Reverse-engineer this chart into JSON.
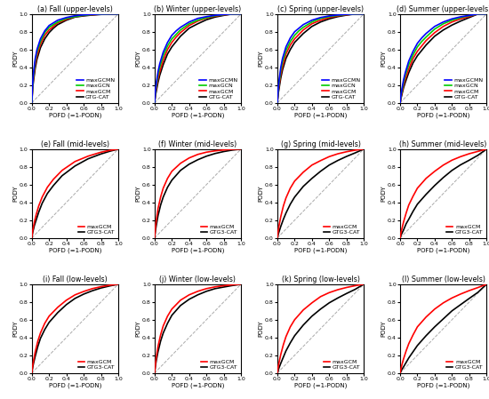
{
  "titles": [
    [
      "(a) Fall (upper-levels)",
      "(b) Winter (upper-levels)",
      "(c) Spring (upper-levels)",
      "(d) Summer (upper-levels)"
    ],
    [
      "(e) Fall (mid-levels)",
      "(f) Winter (mid-levels)",
      "(g) Spring (mid-levels)",
      "(h) Summer (mid-levels)"
    ],
    [
      "(i) Fall (low-levels)",
      "(j) Winter (low-levels)",
      "(k) Spring (low-levels)",
      "(l) Summer (low-levels)"
    ]
  ],
  "xlabel": "POFD (=1-PODN)",
  "ylabel": "PODY",
  "upper_curves": {
    "fall": {
      "maxGCMN": {
        "x": [
          0,
          0.01,
          0.02,
          0.04,
          0.06,
          0.1,
          0.15,
          0.2,
          0.25,
          0.3,
          0.4,
          0.5,
          0.6,
          0.7,
          0.8,
          0.9,
          1.0
        ],
        "y": [
          0,
          0.22,
          0.34,
          0.5,
          0.6,
          0.72,
          0.81,
          0.87,
          0.9,
          0.93,
          0.96,
          0.98,
          0.99,
          0.995,
          0.999,
          1.0,
          1.0
        ]
      },
      "maxGCN": {
        "x": [
          0,
          0.01,
          0.02,
          0.04,
          0.06,
          0.1,
          0.15,
          0.2,
          0.25,
          0.3,
          0.4,
          0.5,
          0.6,
          0.7,
          0.8,
          0.9,
          1.0
        ],
        "y": [
          0,
          0.2,
          0.31,
          0.47,
          0.57,
          0.69,
          0.79,
          0.85,
          0.88,
          0.91,
          0.95,
          0.97,
          0.985,
          0.993,
          0.998,
          1.0,
          1.0
        ]
      },
      "maxGCM": {
        "x": [
          0,
          0.01,
          0.02,
          0.04,
          0.06,
          0.1,
          0.15,
          0.2,
          0.25,
          0.3,
          0.4,
          0.5,
          0.6,
          0.7,
          0.8,
          0.9,
          1.0
        ],
        "y": [
          0,
          0.18,
          0.28,
          0.43,
          0.53,
          0.66,
          0.76,
          0.82,
          0.86,
          0.9,
          0.94,
          0.97,
          0.983,
          0.991,
          0.997,
          1.0,
          1.0
        ]
      },
      "GTGCAT": {
        "x": [
          0,
          0.01,
          0.02,
          0.04,
          0.06,
          0.1,
          0.15,
          0.2,
          0.25,
          0.3,
          0.4,
          0.5,
          0.6,
          0.7,
          0.8,
          0.9,
          1.0
        ],
        "y": [
          0,
          0.16,
          0.25,
          0.39,
          0.49,
          0.62,
          0.72,
          0.79,
          0.84,
          0.88,
          0.93,
          0.965,
          0.978,
          0.988,
          0.995,
          1.0,
          1.0
        ]
      }
    },
    "winter": {
      "maxGCMN": {
        "x": [
          0,
          0.01,
          0.02,
          0.04,
          0.06,
          0.1,
          0.15,
          0.2,
          0.25,
          0.3,
          0.4,
          0.5,
          0.6,
          0.7,
          0.8,
          0.9,
          1.0
        ],
        "y": [
          0,
          0.14,
          0.22,
          0.35,
          0.44,
          0.57,
          0.68,
          0.76,
          0.81,
          0.85,
          0.91,
          0.95,
          0.97,
          0.985,
          0.994,
          1.0,
          1.0
        ]
      },
      "maxGCN": {
        "x": [
          0,
          0.01,
          0.02,
          0.04,
          0.06,
          0.1,
          0.15,
          0.2,
          0.25,
          0.3,
          0.4,
          0.5,
          0.6,
          0.7,
          0.8,
          0.9,
          1.0
        ],
        "y": [
          0,
          0.12,
          0.19,
          0.31,
          0.4,
          0.53,
          0.64,
          0.72,
          0.77,
          0.82,
          0.89,
          0.93,
          0.96,
          0.98,
          0.992,
          1.0,
          1.0
        ]
      },
      "maxGCM": {
        "x": [
          0,
          0.01,
          0.02,
          0.04,
          0.06,
          0.1,
          0.15,
          0.2,
          0.25,
          0.3,
          0.4,
          0.5,
          0.6,
          0.7,
          0.8,
          0.9,
          1.0
        ],
        "y": [
          0,
          0.1,
          0.16,
          0.27,
          0.35,
          0.48,
          0.6,
          0.68,
          0.74,
          0.79,
          0.87,
          0.92,
          0.955,
          0.975,
          0.989,
          1.0,
          1.0
        ]
      },
      "GTGCAT": {
        "x": [
          0,
          0.01,
          0.02,
          0.04,
          0.06,
          0.1,
          0.15,
          0.2,
          0.25,
          0.3,
          0.4,
          0.5,
          0.6,
          0.7,
          0.8,
          0.9,
          1.0
        ],
        "y": [
          0,
          0.08,
          0.13,
          0.23,
          0.31,
          0.43,
          0.55,
          0.63,
          0.69,
          0.75,
          0.84,
          0.89,
          0.935,
          0.965,
          0.984,
          1.0,
          1.0
        ]
      }
    },
    "spring": {
      "maxGCMN": {
        "x": [
          0,
          0.01,
          0.02,
          0.04,
          0.06,
          0.1,
          0.15,
          0.2,
          0.25,
          0.3,
          0.4,
          0.5,
          0.6,
          0.7,
          0.8,
          0.9,
          1.0
        ],
        "y": [
          0,
          0.16,
          0.25,
          0.4,
          0.5,
          0.63,
          0.73,
          0.8,
          0.84,
          0.88,
          0.93,
          0.96,
          0.978,
          0.989,
          0.996,
          1.0,
          1.0
        ]
      },
      "maxGCN": {
        "x": [
          0,
          0.01,
          0.02,
          0.04,
          0.06,
          0.1,
          0.15,
          0.2,
          0.25,
          0.3,
          0.4,
          0.5,
          0.6,
          0.7,
          0.8,
          0.9,
          1.0
        ],
        "y": [
          0,
          0.14,
          0.22,
          0.36,
          0.46,
          0.59,
          0.69,
          0.76,
          0.81,
          0.85,
          0.91,
          0.95,
          0.97,
          0.984,
          0.994,
          1.0,
          1.0
        ]
      },
      "maxGCM": {
        "x": [
          0,
          0.01,
          0.02,
          0.04,
          0.06,
          0.1,
          0.15,
          0.2,
          0.25,
          0.3,
          0.4,
          0.5,
          0.6,
          0.7,
          0.8,
          0.9,
          1.0
        ],
        "y": [
          0,
          0.12,
          0.19,
          0.32,
          0.41,
          0.55,
          0.65,
          0.72,
          0.77,
          0.82,
          0.89,
          0.93,
          0.96,
          0.978,
          0.991,
          1.0,
          1.0
        ]
      },
      "GTGCAT": {
        "x": [
          0,
          0.01,
          0.02,
          0.04,
          0.06,
          0.1,
          0.15,
          0.2,
          0.25,
          0.3,
          0.4,
          0.5,
          0.6,
          0.7,
          0.8,
          0.9,
          1.0
        ],
        "y": [
          0,
          0.1,
          0.16,
          0.28,
          0.37,
          0.5,
          0.6,
          0.68,
          0.73,
          0.78,
          0.86,
          0.91,
          0.945,
          0.97,
          0.987,
          1.0,
          1.0
        ]
      }
    },
    "summer": {
      "maxGCMN": {
        "x": [
          0,
          0.01,
          0.02,
          0.04,
          0.06,
          0.1,
          0.15,
          0.2,
          0.25,
          0.3,
          0.4,
          0.5,
          0.6,
          0.7,
          0.8,
          0.9,
          1.0
        ],
        "y": [
          0,
          0.09,
          0.15,
          0.26,
          0.34,
          0.47,
          0.58,
          0.67,
          0.73,
          0.78,
          0.86,
          0.91,
          0.945,
          0.968,
          0.984,
          1.0,
          1.0
        ]
      },
      "maxGCN": {
        "x": [
          0,
          0.01,
          0.02,
          0.04,
          0.06,
          0.1,
          0.15,
          0.2,
          0.25,
          0.3,
          0.4,
          0.5,
          0.6,
          0.7,
          0.8,
          0.9,
          1.0
        ],
        "y": [
          0,
          0.08,
          0.13,
          0.23,
          0.31,
          0.43,
          0.54,
          0.63,
          0.69,
          0.74,
          0.83,
          0.89,
          0.93,
          0.96,
          0.98,
          1.0,
          1.0
        ]
      },
      "maxGCM": {
        "x": [
          0,
          0.01,
          0.02,
          0.04,
          0.06,
          0.1,
          0.15,
          0.2,
          0.25,
          0.3,
          0.4,
          0.5,
          0.6,
          0.7,
          0.8,
          0.9,
          1.0
        ],
        "y": [
          0,
          0.06,
          0.11,
          0.2,
          0.27,
          0.38,
          0.5,
          0.58,
          0.64,
          0.7,
          0.79,
          0.86,
          0.91,
          0.945,
          0.972,
          1.0,
          1.0
        ]
      },
      "GTGCAT": {
        "x": [
          0,
          0.01,
          0.02,
          0.04,
          0.06,
          0.1,
          0.15,
          0.2,
          0.25,
          0.3,
          0.4,
          0.5,
          0.6,
          0.7,
          0.8,
          0.9,
          1.0
        ],
        "y": [
          0,
          0.05,
          0.09,
          0.17,
          0.23,
          0.34,
          0.45,
          0.53,
          0.59,
          0.65,
          0.75,
          0.82,
          0.875,
          0.92,
          0.96,
          1.0,
          1.0
        ]
      }
    }
  },
  "mid_curves": {
    "fall": {
      "maxGCM": {
        "x": [
          0,
          0.01,
          0.03,
          0.05,
          0.08,
          0.12,
          0.18,
          0.25,
          0.35,
          0.5,
          0.65,
          0.8,
          0.9,
          1.0
        ],
        "y": [
          0,
          0.08,
          0.18,
          0.26,
          0.36,
          0.46,
          0.57,
          0.66,
          0.76,
          0.86,
          0.92,
          0.965,
          0.985,
          1.0
        ]
      },
      "GTGCAT": {
        "x": [
          0,
          0.01,
          0.03,
          0.05,
          0.08,
          0.12,
          0.18,
          0.25,
          0.35,
          0.5,
          0.65,
          0.8,
          0.9,
          1.0
        ],
        "y": [
          0,
          0.06,
          0.14,
          0.2,
          0.29,
          0.39,
          0.5,
          0.59,
          0.7,
          0.81,
          0.89,
          0.945,
          0.975,
          1.0
        ]
      }
    },
    "winter": {
      "maxGCM": {
        "x": [
          0,
          0.01,
          0.02,
          0.04,
          0.07,
          0.1,
          0.15,
          0.2,
          0.3,
          0.4,
          0.5,
          0.6,
          0.7,
          0.8,
          0.9,
          1.0
        ],
        "y": [
          0,
          0.12,
          0.2,
          0.33,
          0.46,
          0.56,
          0.67,
          0.75,
          0.84,
          0.9,
          0.94,
          0.965,
          0.98,
          0.99,
          0.997,
          1.0
        ]
      },
      "GTGCAT": {
        "x": [
          0,
          0.01,
          0.02,
          0.04,
          0.07,
          0.1,
          0.15,
          0.2,
          0.3,
          0.4,
          0.5,
          0.6,
          0.7,
          0.8,
          0.9,
          1.0
        ],
        "y": [
          0,
          0.08,
          0.14,
          0.25,
          0.37,
          0.46,
          0.57,
          0.65,
          0.76,
          0.83,
          0.88,
          0.92,
          0.95,
          0.972,
          0.989,
          1.0
        ]
      }
    },
    "spring": {
      "maxGCM": {
        "x": [
          0,
          0.01,
          0.02,
          0.04,
          0.07,
          0.1,
          0.15,
          0.2,
          0.3,
          0.4,
          0.5,
          0.6,
          0.7,
          0.8,
          0.9,
          1.0
        ],
        "y": [
          0,
          0.08,
          0.14,
          0.24,
          0.36,
          0.45,
          0.56,
          0.64,
          0.74,
          0.82,
          0.87,
          0.915,
          0.947,
          0.97,
          0.988,
          1.0
        ]
      },
      "GTGCAT": {
        "x": [
          0,
          0.01,
          0.02,
          0.04,
          0.07,
          0.1,
          0.15,
          0.2,
          0.3,
          0.4,
          0.5,
          0.6,
          0.7,
          0.8,
          0.9,
          1.0
        ],
        "y": [
          0,
          0.04,
          0.07,
          0.13,
          0.21,
          0.28,
          0.38,
          0.46,
          0.58,
          0.67,
          0.75,
          0.82,
          0.872,
          0.917,
          0.957,
          1.0
        ]
      }
    },
    "summer": {
      "maxGCM": {
        "x": [
          0,
          0.01,
          0.02,
          0.04,
          0.07,
          0.1,
          0.15,
          0.2,
          0.3,
          0.4,
          0.5,
          0.6,
          0.7,
          0.8,
          0.9,
          1.0
        ],
        "y": [
          0,
          0.06,
          0.1,
          0.18,
          0.28,
          0.37,
          0.47,
          0.56,
          0.67,
          0.75,
          0.82,
          0.875,
          0.915,
          0.948,
          0.974,
          1.0
        ]
      },
      "GTGCAT": {
        "x": [
          0,
          0.01,
          0.02,
          0.04,
          0.07,
          0.1,
          0.15,
          0.2,
          0.3,
          0.4,
          0.5,
          0.6,
          0.7,
          0.8,
          0.9,
          1.0
        ],
        "y": [
          0,
          0.03,
          0.05,
          0.09,
          0.16,
          0.21,
          0.3,
          0.38,
          0.49,
          0.59,
          0.68,
          0.76,
          0.823,
          0.875,
          0.93,
          1.0
        ]
      }
    }
  },
  "low_curves": {
    "fall": {
      "maxGCM": {
        "x": [
          0,
          0.01,
          0.02,
          0.04,
          0.07,
          0.1,
          0.15,
          0.2,
          0.3,
          0.4,
          0.5,
          0.6,
          0.7,
          0.8,
          0.9,
          1.0
        ],
        "y": [
          0,
          0.08,
          0.14,
          0.24,
          0.36,
          0.45,
          0.56,
          0.64,
          0.74,
          0.82,
          0.88,
          0.918,
          0.95,
          0.972,
          0.988,
          1.0
        ]
      },
      "GTGCAT": {
        "x": [
          0,
          0.01,
          0.02,
          0.04,
          0.07,
          0.1,
          0.15,
          0.2,
          0.3,
          0.4,
          0.5,
          0.6,
          0.7,
          0.8,
          0.9,
          1.0
        ],
        "y": [
          0,
          0.06,
          0.11,
          0.19,
          0.3,
          0.39,
          0.49,
          0.57,
          0.68,
          0.77,
          0.84,
          0.888,
          0.926,
          0.957,
          0.98,
          1.0
        ]
      }
    },
    "winter": {
      "maxGCM": {
        "x": [
          0,
          0.01,
          0.02,
          0.04,
          0.07,
          0.1,
          0.15,
          0.2,
          0.3,
          0.4,
          0.5,
          0.6,
          0.7,
          0.8,
          0.9,
          1.0
        ],
        "y": [
          0,
          0.1,
          0.18,
          0.3,
          0.43,
          0.53,
          0.64,
          0.72,
          0.82,
          0.88,
          0.92,
          0.95,
          0.97,
          0.983,
          0.993,
          1.0
        ]
      },
      "GTGCAT": {
        "x": [
          0,
          0.01,
          0.02,
          0.04,
          0.07,
          0.1,
          0.15,
          0.2,
          0.3,
          0.4,
          0.5,
          0.6,
          0.7,
          0.8,
          0.9,
          1.0
        ],
        "y": [
          0,
          0.08,
          0.14,
          0.24,
          0.36,
          0.45,
          0.56,
          0.65,
          0.76,
          0.83,
          0.88,
          0.92,
          0.95,
          0.968,
          0.985,
          1.0
        ]
      }
    },
    "spring": {
      "maxGCM": {
        "x": [
          0,
          0.01,
          0.02,
          0.04,
          0.07,
          0.1,
          0.15,
          0.2,
          0.3,
          0.4,
          0.5,
          0.6,
          0.7,
          0.8,
          0.9,
          1.0
        ],
        "y": [
          0,
          0.07,
          0.12,
          0.21,
          0.32,
          0.41,
          0.52,
          0.6,
          0.71,
          0.79,
          0.86,
          0.905,
          0.938,
          0.963,
          0.983,
          1.0
        ]
      },
      "GTGCAT": {
        "x": [
          0,
          0.01,
          0.02,
          0.04,
          0.07,
          0.1,
          0.15,
          0.2,
          0.3,
          0.4,
          0.5,
          0.6,
          0.7,
          0.8,
          0.9,
          1.0
        ],
        "y": [
          0,
          0.03,
          0.06,
          0.11,
          0.18,
          0.25,
          0.34,
          0.42,
          0.54,
          0.64,
          0.72,
          0.79,
          0.845,
          0.895,
          0.942,
          1.0
        ]
      }
    },
    "summer": {
      "maxGCM": {
        "x": [
          0,
          0.01,
          0.02,
          0.04,
          0.07,
          0.1,
          0.15,
          0.2,
          0.3,
          0.4,
          0.5,
          0.6,
          0.7,
          0.8,
          0.9,
          1.0
        ],
        "y": [
          0,
          0.05,
          0.09,
          0.16,
          0.25,
          0.33,
          0.43,
          0.52,
          0.63,
          0.72,
          0.79,
          0.845,
          0.889,
          0.928,
          0.962,
          1.0
        ]
      },
      "GTGCAT": {
        "x": [
          0,
          0.01,
          0.02,
          0.04,
          0.07,
          0.1,
          0.15,
          0.2,
          0.3,
          0.4,
          0.5,
          0.6,
          0.7,
          0.8,
          0.9,
          1.0
        ],
        "y": [
          0,
          0.02,
          0.04,
          0.07,
          0.12,
          0.17,
          0.24,
          0.31,
          0.42,
          0.52,
          0.61,
          0.7,
          0.77,
          0.84,
          0.908,
          1.0
        ]
      }
    }
  },
  "colors": {
    "maxGCMN": "#0000ff",
    "maxGCN": "#00cc00",
    "maxGCM": "#ff0000",
    "GTGCAT": "#000000"
  },
  "linewidth": 1.2,
  "diagonal_color": "#aaaaaa",
  "background": "#ffffff"
}
